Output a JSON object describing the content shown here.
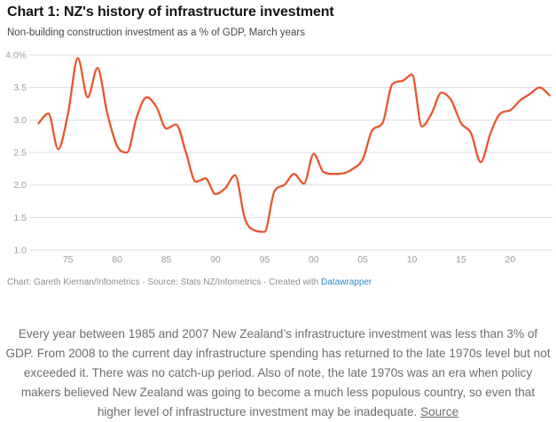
{
  "header": {
    "title": "Chart 1: NZ's history of infrastructure investment",
    "subtitle": "Non-building construction investment as a % of GDP, March years"
  },
  "chart_data": {
    "type": "line",
    "series_name": "Non-building construction investment as a % of GDP",
    "x": [
      1972,
      1973,
      1974,
      1975,
      1976,
      1977,
      1978,
      1979,
      1980,
      1981,
      1982,
      1983,
      1984,
      1985,
      1986,
      1987,
      1988,
      1989,
      1990,
      1991,
      1992,
      1993,
      1994,
      1995,
      1996,
      1997,
      1998,
      1999,
      2000,
      2001,
      2002,
      2003,
      2004,
      2005,
      2006,
      2007,
      2008,
      2009,
      2010,
      2011,
      2012,
      2013,
      2014,
      2015,
      2016,
      2017,
      2018,
      2019,
      2020,
      2021,
      2022,
      2023,
      2024
    ],
    "values": [
      2.95,
      3.1,
      2.55,
      3.1,
      3.95,
      3.35,
      3.8,
      3.1,
      2.6,
      2.5,
      3.05,
      3.35,
      3.2,
      2.87,
      2.93,
      2.5,
      2.05,
      2.1,
      1.86,
      1.95,
      2.15,
      1.48,
      1.3,
      1.28,
      1.9,
      2.0,
      2.17,
      2.02,
      2.48,
      2.2,
      2.17,
      2.18,
      2.25,
      2.4,
      2.85,
      2.95,
      3.55,
      3.6,
      3.7,
      2.9,
      3.1,
      3.42,
      3.3,
      2.95,
      2.8,
      2.35,
      2.8,
      3.1,
      3.15,
      3.3,
      3.4,
      3.5,
      3.38
    ],
    "xlim": [
      1972,
      2024
    ],
    "ylim": [
      1.0,
      4.0
    ],
    "grid": true,
    "legend": "none",
    "x_ticks": {
      "positions": [
        1975,
        1980,
        1985,
        1990,
        1995,
        2000,
        2005,
        2010,
        2015,
        2020
      ],
      "labels": [
        "75",
        "80",
        "85",
        "90",
        "95",
        "00",
        "05",
        "10",
        "15",
        "20"
      ]
    },
    "y_ticks": {
      "values": [
        1.0,
        1.5,
        2.0,
        2.5,
        3.0,
        3.5,
        4.0
      ],
      "labels": [
        "1.0",
        "1.5",
        "2.0",
        "2.5",
        "3.0",
        "3.5",
        "4.0%"
      ]
    },
    "line_color": "#e8562d",
    "grid_color": "#dddddd",
    "tick_label_color": "#9b9b9b"
  },
  "footer": {
    "text": "Chart: Gareth Kiernan/Infometrics · Source: Stats NZ/Infometrics · Created with ",
    "link_label": "Datawrapper",
    "link_color": "#2d8ac9"
  },
  "body": {
    "text": "Every year between 1985 and 2007 New Zealand’s infrastructure investment was less than 3% of GDP. From 2008 to the current day infrastructure spending has returned to the late 1970s level but not exceeded it. There was no catch-up period. Also of note, the late 1970s was an era when policy makers believed New Zealand was going to become a much less populous country, so even that higher level of infrastructure investment may be inadequate. ",
    "link_label": "Source"
  }
}
